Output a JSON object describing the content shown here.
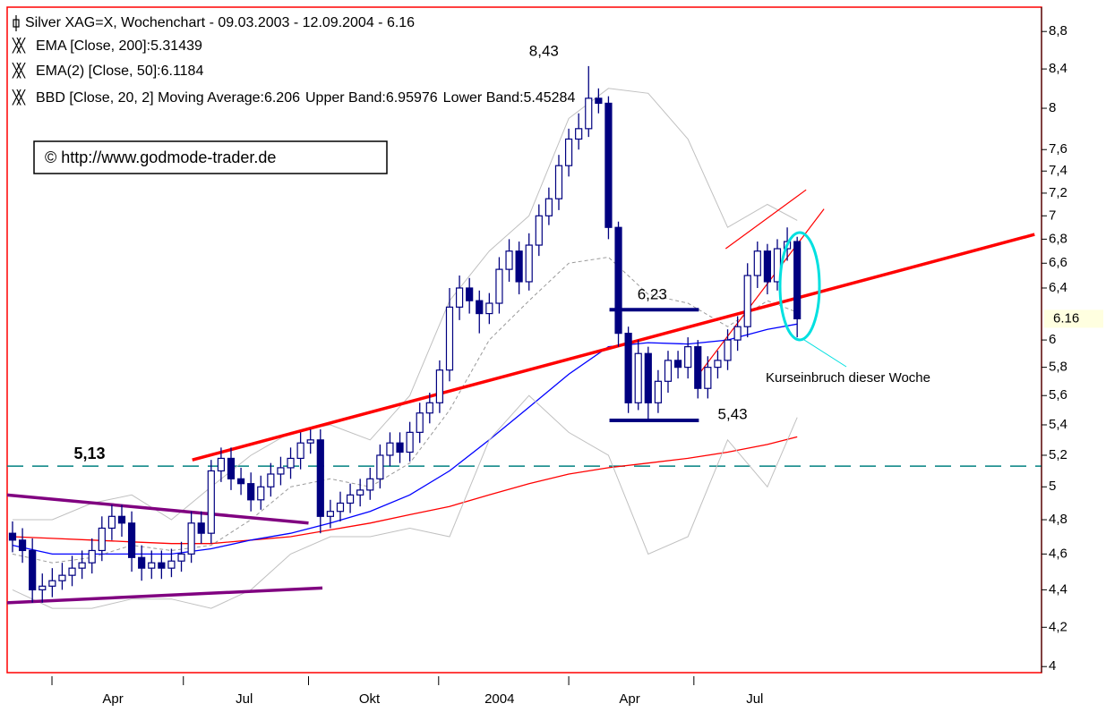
{
  "chart_data": {
    "type": "candlestick",
    "title": "Silver XAG=X, Wochenchart - 09.03.2003 - 12.09.2004 - 6.16",
    "watermark": "© http://www.godmode-trader.de",
    "color": "#000080",
    "log_scale": true,
    "xlim": [
      -0.54,
      103.6
    ],
    "xticks": [
      {
        "value": 3.97,
        "label": "Apr"
      },
      {
        "value": 17.2,
        "label": "Jul"
      },
      {
        "value": 29.8,
        "label": "Okt"
      },
      {
        "value": 42.9,
        "label": "2004"
      },
      {
        "value": 56.0,
        "label": "Apr"
      },
      {
        "value": 68.6,
        "label": "Jul"
      }
    ],
    "ylim": [
      3.97,
      9.07
    ],
    "yticks": [
      {
        "value": 8.8,
        "label": "8,8"
      },
      {
        "value": 8.4,
        "label": "8,4"
      },
      8,
      {
        "value": 7.6,
        "label": "7,6"
      },
      {
        "value": 7.4,
        "label": "7,4"
      },
      {
        "value": 7.2,
        "label": "7,2"
      },
      7,
      {
        "value": 6.8,
        "label": "6,8"
      },
      {
        "value": 6.6,
        "label": "6,6"
      },
      {
        "value": 6.4,
        "label": "6,4"
      },
      6,
      {
        "value": 5.8,
        "label": "5,8"
      },
      {
        "value": 5.6,
        "label": "5,6"
      },
      {
        "value": 5.4,
        "label": "5,4"
      },
      {
        "value": 5.2,
        "label": "5,2"
      },
      5,
      {
        "value": 4.8,
        "label": "4,8"
      },
      {
        "value": 4.6,
        "label": "4,6"
      },
      {
        "value": 4.4,
        "label": "4,4"
      },
      {
        "value": 4.2,
        "label": "4,2"
      },
      4
    ],
    "last_value": 6.16,
    "open": [
      4.72,
      4.68,
      4.62,
      4.4,
      4.42,
      4.45,
      4.48,
      4.52,
      4.55,
      4.62,
      4.75,
      4.82,
      4.78,
      4.58,
      4.52,
      4.55,
      4.52,
      4.56,
      4.6,
      4.78,
      4.72,
      5.1,
      5.18,
      5.05,
      5.02,
      4.92,
      5.0,
      5.08,
      5.12,
      5.18,
      5.28,
      5.3,
      4.82,
      4.85,
      4.9,
      4.95,
      4.98,
      5.05,
      5.2,
      5.28,
      5.22,
      5.35,
      5.48,
      5.55,
      5.78,
      6.25,
      6.4,
      6.3,
      6.2,
      6.28,
      6.55,
      6.7,
      6.45,
      6.75,
      7.0,
      7.15,
      7.45,
      7.7,
      7.8,
      8.1,
      8.05,
      6.9,
      6.05,
      5.55,
      5.9,
      5.55,
      5.7,
      5.85,
      5.8,
      5.95,
      5.65,
      5.8,
      5.85,
      6.0,
      6.1,
      6.5,
      6.7,
      6.45,
      6.72,
      6.78
    ],
    "high": [
      4.79,
      4.75,
      4.69,
      4.49,
      4.52,
      4.55,
      4.59,
      4.62,
      4.69,
      4.82,
      4.89,
      4.89,
      4.85,
      4.65,
      4.62,
      4.62,
      4.63,
      4.67,
      4.85,
      4.85,
      5.17,
      5.25,
      5.25,
      5.12,
      5.09,
      5.07,
      5.15,
      5.19,
      5.25,
      5.35,
      5.37,
      5.37,
      4.92,
      4.97,
      5.02,
      5.05,
      5.12,
      5.27,
      5.35,
      5.35,
      5.42,
      5.55,
      5.62,
      5.85,
      6.4,
      6.5,
      6.48,
      6.38,
      6.36,
      6.65,
      6.8,
      6.78,
      6.85,
      7.1,
      7.25,
      7.55,
      7.8,
      7.95,
      8.43,
      8.2,
      8.12,
      6.95,
      6.1,
      6.0,
      5.95,
      5.78,
      5.92,
      5.92,
      6.02,
      6.0,
      5.88,
      5.92,
      6.08,
      6.18,
      6.6,
      6.78,
      6.76,
      6.8,
      6.9,
      6.82
    ],
    "low": [
      4.61,
      4.55,
      4.33,
      4.33,
      4.36,
      4.4,
      4.42,
      4.46,
      4.49,
      4.56,
      4.68,
      4.7,
      4.5,
      4.45,
      4.46,
      4.46,
      4.47,
      4.5,
      4.55,
      4.66,
      4.66,
      5.03,
      4.98,
      4.95,
      4.85,
      4.86,
      4.94,
      5.01,
      5.05,
      5.11,
      5.21,
      4.72,
      4.75,
      4.79,
      4.84,
      4.88,
      4.92,
      4.99,
      5.13,
      5.15,
      5.16,
      5.28,
      5.41,
      5.48,
      5.7,
      6.15,
      6.2,
      6.05,
      6.12,
      6.2,
      6.45,
      6.35,
      6.38,
      6.66,
      6.92,
      7.05,
      7.35,
      7.6,
      7.72,
      7.95,
      6.8,
      5.95,
      5.48,
      5.5,
      5.43,
      5.48,
      5.62,
      5.72,
      5.72,
      5.58,
      5.58,
      5.72,
      5.78,
      5.92,
      6.02,
      6.4,
      6.35,
      6.38,
      6.62,
      6.02
    ],
    "close": [
      4.68,
      4.62,
      4.4,
      4.42,
      4.45,
      4.48,
      4.52,
      4.55,
      4.62,
      4.75,
      4.82,
      4.78,
      4.58,
      4.52,
      4.55,
      4.52,
      4.56,
      4.6,
      4.78,
      4.72,
      5.1,
      5.18,
      5.05,
      5.02,
      4.92,
      5.0,
      5.08,
      5.12,
      5.18,
      5.28,
      5.3,
      4.82,
      4.85,
      4.9,
      4.95,
      4.98,
      5.05,
      5.2,
      5.28,
      5.22,
      5.35,
      5.48,
      5.55,
      5.78,
      6.25,
      6.4,
      6.3,
      6.2,
      6.28,
      6.55,
      6.7,
      6.45,
      6.75,
      7.0,
      7.15,
      7.45,
      7.7,
      7.8,
      8.1,
      8.05,
      6.9,
      6.05,
      5.55,
      5.9,
      5.55,
      5.7,
      5.85,
      5.8,
      5.95,
      5.65,
      5.8,
      5.85,
      6.0,
      6.1,
      6.5,
      6.7,
      6.45,
      6.72,
      6.78,
      6.16
    ],
    "series": [
      {
        "name": "EMA [Close, 200]:5.31439",
        "color": "#ff0000",
        "style": "solid",
        "legend_line": 0,
        "x": [
          0,
          4,
          8,
          12,
          16,
          20,
          24,
          28,
          32,
          36,
          40,
          44,
          48,
          52,
          56,
          60,
          64,
          68,
          72,
          76,
          79
        ],
        "values": [
          4.7,
          4.69,
          4.68,
          4.67,
          4.66,
          4.66,
          4.68,
          4.7,
          4.74,
          4.78,
          4.83,
          4.88,
          4.95,
          5.02,
          5.08,
          5.12,
          5.15,
          5.18,
          5.22,
          5.27,
          5.32
        ]
      },
      {
        "name": "EMA(2) [Close, 50]:6.1184",
        "color": "#0000ff",
        "style": "solid",
        "legend_line": 1,
        "x": [
          0,
          4,
          8,
          12,
          16,
          20,
          24,
          28,
          32,
          36,
          40,
          44,
          48,
          52,
          56,
          60,
          64,
          68,
          72,
          76,
          79
        ],
        "values": [
          4.65,
          4.6,
          4.6,
          4.6,
          4.6,
          4.63,
          4.68,
          4.72,
          4.78,
          4.85,
          4.95,
          5.1,
          5.3,
          5.52,
          5.75,
          5.95,
          5.98,
          5.97,
          6.0,
          6.08,
          6.12
        ]
      },
      {
        "name": "BBD [Close, 20, 2] Moving Average:6.206",
        "color": "#999999",
        "style": "dashed",
        "legend_line": 2,
        "x": [
          0,
          4,
          8,
          12,
          16,
          20,
          24,
          28,
          32,
          36,
          40,
          44,
          48,
          52,
          56,
          60,
          64,
          68,
          72,
          76,
          79
        ],
        "values": [
          4.6,
          4.55,
          4.58,
          4.65,
          4.62,
          4.65,
          4.8,
          5.0,
          5.05,
          5.0,
          5.15,
          5.5,
          6.0,
          6.3,
          6.6,
          6.65,
          6.35,
          6.28,
          6.1,
          6.3,
          6.21
        ]
      },
      {
        "name": "Upper Band:6.95976",
        "color": "#c0c0c0",
        "style": "solid",
        "legend_line": 2,
        "x": [
          0,
          4,
          8,
          12,
          16,
          20,
          24,
          28,
          32,
          36,
          40,
          44,
          48,
          52,
          56,
          60,
          64,
          68,
          72,
          76,
          79
        ],
        "values": [
          4.8,
          4.8,
          4.9,
          4.95,
          4.8,
          5.0,
          5.2,
          5.35,
          5.4,
          5.3,
          5.6,
          6.3,
          6.7,
          7.0,
          7.9,
          8.2,
          8.15,
          7.7,
          6.9,
          7.1,
          6.96
        ]
      },
      {
        "name": "Lower Band:5.45284",
        "color": "#c0c0c0",
        "style": "solid",
        "legend_line": 2,
        "x": [
          0,
          4,
          8,
          12,
          16,
          20,
          24,
          28,
          32,
          36,
          40,
          44,
          48,
          52,
          56,
          60,
          64,
          68,
          72,
          76,
          79
        ],
        "values": [
          4.4,
          4.3,
          4.3,
          4.35,
          4.35,
          4.3,
          4.4,
          4.6,
          4.7,
          4.7,
          4.75,
          4.7,
          5.3,
          5.6,
          5.35,
          5.2,
          4.6,
          4.7,
          5.3,
          5.0,
          5.45
        ]
      }
    ],
    "hline": {
      "value": 5.13,
      "label": "5,13",
      "color": "#008080"
    },
    "drawings": [
      {
        "x": [
          18.1,
          102.9
        ],
        "y": [
          5.17,
          6.84
        ],
        "color": "#ff0000",
        "width": 3.5
      },
      {
        "x": [
          -0.54,
          29.8
        ],
        "y": [
          4.95,
          4.78
        ],
        "color": "#800080",
        "width": 3.5
      },
      {
        "x": [
          -0.54,
          31.2
        ],
        "y": [
          4.33,
          4.41
        ],
        "color": "#800080",
        "width": 3.5
      },
      {
        "x": [
          60.1,
          69.1
        ],
        "y": [
          6.23,
          6.23
        ],
        "color": "#000080",
        "width": 4
      },
      {
        "x": [
          60.1,
          69.1
        ],
        "y": [
          5.43,
          5.43
        ],
        "color": "#000080",
        "width": 4
      },
      {
        "x": [
          69.1,
          81.7
        ],
        "y": [
          5.75,
          7.06
        ],
        "color": "#ff0000",
        "width": 1.2
      },
      {
        "x": [
          71.8,
          79.9
        ],
        "y": [
          6.72,
          7.23
        ],
        "color": "#ff0000",
        "width": 1.2
      }
    ],
    "annotations": [
      {
        "label": "8,43",
        "value": 8.43,
        "x": 53.5
      },
      {
        "label": "6,23",
        "value": 6.23,
        "x": 64.4
      },
      {
        "label": "5,43",
        "value": 5.43,
        "x": 72.5
      }
    ],
    "note": "Kurseinbruch dieser Woche"
  }
}
